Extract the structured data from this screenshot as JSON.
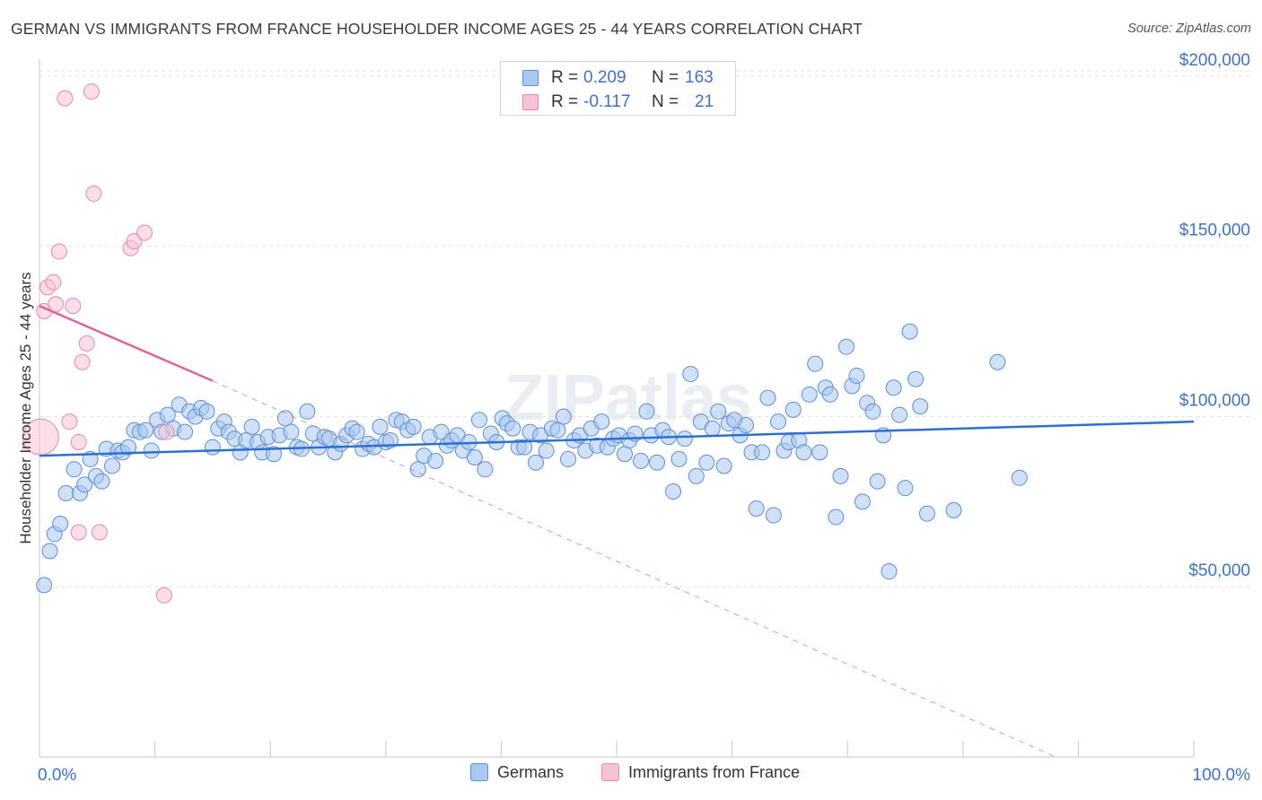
{
  "title": "GERMAN VS IMMIGRANTS FROM FRANCE HOUSEHOLDER INCOME AGES 25 - 44 YEARS CORRELATION CHART",
  "source": "Source: ZipAtlas.com",
  "watermark": "ZIPatlas",
  "colors": {
    "blue_fill": "#aac8f0",
    "blue_stroke": "#5b8fd6",
    "blue_line": "#2f6fcf",
    "pink_fill": "#f7c3d3",
    "pink_stroke": "#e68aa8",
    "pink_line": "#e2648e",
    "axis_text": "#3d72cc",
    "grid": "#e3e3e3"
  },
  "legend_stats": [
    {
      "r_label": "R = ",
      "r_value": "0.209",
      "n_label": "N = ",
      "n_value": "163"
    },
    {
      "r_label": "R = ",
      "r_value": "-0.117",
      "n_label": "N = ",
      "n_value": "21"
    }
  ],
  "chart_data": {
    "type": "scatter",
    "title": "GERMAN VS IMMIGRANTS FROM FRANCE HOUSEHOLDER INCOME AGES 25 - 44 YEARS CORRELATION CHART",
    "xlabel": "",
    "ylabel": "Householder Income Ages 25 - 44 years",
    "xlim": [
      0,
      100
    ],
    "ylim": [
      0,
      205000
    ],
    "x_tick_labels": [
      "0.0%",
      "100.0%"
    ],
    "y_ticks": [
      50000,
      100000,
      150000,
      200000
    ],
    "y_tick_labels": [
      "$50,000",
      "$100,000",
      "$150,000",
      "$200,000"
    ],
    "legend": "bottom-center",
    "series": [
      {
        "name": "Germans",
        "r": 0.209,
        "n": 163,
        "trend": {
          "x": [
            0,
            100
          ],
          "y": [
            88500,
            98500
          ]
        },
        "points": [
          [
            0.4,
            50500
          ],
          [
            0.9,
            60500
          ],
          [
            1.3,
            65500
          ],
          [
            1.8,
            68500
          ],
          [
            2.3,
            77500
          ],
          [
            3.0,
            84500
          ],
          [
            3.5,
            77500
          ],
          [
            3.9,
            80000
          ],
          [
            4.4,
            87500
          ],
          [
            4.9,
            82500
          ],
          [
            5.4,
            81000
          ],
          [
            5.8,
            90500
          ],
          [
            6.3,
            85500
          ],
          [
            6.8,
            90000
          ],
          [
            7.2,
            89500
          ],
          [
            7.7,
            91000
          ],
          [
            8.2,
            96000
          ],
          [
            8.7,
            95500
          ],
          [
            9.2,
            96000
          ],
          [
            9.7,
            90000
          ],
          [
            10.2,
            99000
          ],
          [
            10.6,
            95500
          ],
          [
            11.1,
            100500
          ],
          [
            11.6,
            96500
          ],
          [
            12.1,
            103500
          ],
          [
            12.6,
            95500
          ],
          [
            13.0,
            101500
          ],
          [
            13.5,
            100000
          ],
          [
            14.0,
            102500
          ],
          [
            14.5,
            101500
          ],
          [
            15.0,
            91000
          ],
          [
            15.5,
            96500
          ],
          [
            16.0,
            98500
          ],
          [
            16.4,
            95500
          ],
          [
            16.9,
            93500
          ],
          [
            17.4,
            89500
          ],
          [
            17.9,
            93000
          ],
          [
            18.4,
            97000
          ],
          [
            18.9,
            92500
          ],
          [
            19.3,
            89500
          ],
          [
            19.8,
            94000
          ],
          [
            20.3,
            89000
          ],
          [
            20.8,
            94500
          ],
          [
            21.3,
            99500
          ],
          [
            21.8,
            95500
          ],
          [
            22.3,
            91000
          ],
          [
            22.7,
            90500
          ],
          [
            23.2,
            101500
          ],
          [
            23.7,
            95000
          ],
          [
            24.2,
            91000
          ],
          [
            24.7,
            94000
          ],
          [
            25.1,
            93500
          ],
          [
            25.6,
            89500
          ],
          [
            26.1,
            92000
          ],
          [
            26.6,
            94500
          ],
          [
            27.1,
            96500
          ],
          [
            27.5,
            95500
          ],
          [
            28.0,
            90500
          ],
          [
            28.5,
            92000
          ],
          [
            29.0,
            91000
          ],
          [
            29.5,
            97000
          ],
          [
            30.0,
            92500
          ],
          [
            30.4,
            93000
          ],
          [
            30.9,
            99000
          ],
          [
            31.4,
            98500
          ],
          [
            31.9,
            96000
          ],
          [
            32.4,
            97000
          ],
          [
            32.8,
            84500
          ],
          [
            33.3,
            88500
          ],
          [
            33.8,
            94000
          ],
          [
            34.3,
            87000
          ],
          [
            34.8,
            95500
          ],
          [
            35.3,
            91500
          ],
          [
            35.7,
            93000
          ],
          [
            36.2,
            94500
          ],
          [
            36.7,
            90000
          ],
          [
            37.2,
            92500
          ],
          [
            37.7,
            88000
          ],
          [
            38.1,
            99000
          ],
          [
            38.6,
            84500
          ],
          [
            39.1,
            95000
          ],
          [
            39.6,
            92500
          ],
          [
            40.1,
            99500
          ],
          [
            40.5,
            98000
          ],
          [
            41.0,
            96500
          ],
          [
            41.5,
            91000
          ],
          [
            42.0,
            91000
          ],
          [
            42.5,
            95500
          ],
          [
            43.0,
            86500
          ],
          [
            43.4,
            94500
          ],
          [
            43.9,
            90000
          ],
          [
            44.4,
            96500
          ],
          [
            44.9,
            96000
          ],
          [
            45.4,
            100000
          ],
          [
            45.8,
            87500
          ],
          [
            46.3,
            93000
          ],
          [
            46.8,
            94500
          ],
          [
            47.3,
            90000
          ],
          [
            47.8,
            96500
          ],
          [
            48.3,
            91500
          ],
          [
            48.7,
            98500
          ],
          [
            49.2,
            91000
          ],
          [
            49.7,
            93500
          ],
          [
            50.2,
            94500
          ],
          [
            50.7,
            89000
          ],
          [
            51.1,
            93000
          ],
          [
            51.6,
            95000
          ],
          [
            52.1,
            87000
          ],
          [
            52.6,
            101500
          ],
          [
            53.0,
            94500
          ],
          [
            53.5,
            86500
          ],
          [
            54.0,
            96000
          ],
          [
            54.5,
            94000
          ],
          [
            54.9,
            78000
          ],
          [
            55.4,
            87500
          ],
          [
            55.9,
            93500
          ],
          [
            56.4,
            112500
          ],
          [
            56.9,
            82500
          ],
          [
            57.3,
            98500
          ],
          [
            57.8,
            86500
          ],
          [
            58.3,
            96500
          ],
          [
            58.8,
            101500
          ],
          [
            59.3,
            85500
          ],
          [
            59.7,
            98000
          ],
          [
            60.2,
            99000
          ],
          [
            60.7,
            94500
          ],
          [
            61.2,
            97500
          ],
          [
            61.7,
            89500
          ],
          [
            62.1,
            73000
          ],
          [
            62.6,
            89500
          ],
          [
            63.1,
            105500
          ],
          [
            63.6,
            71000
          ],
          [
            64.0,
            98500
          ],
          [
            64.5,
            90000
          ],
          [
            64.9,
            92500
          ],
          [
            65.3,
            102000
          ],
          [
            65.8,
            93000
          ],
          [
            66.2,
            89500
          ],
          [
            66.7,
            106500
          ],
          [
            67.2,
            115500
          ],
          [
            67.6,
            89500
          ],
          [
            68.1,
            108500
          ],
          [
            68.5,
            106500
          ],
          [
            69.0,
            70500
          ],
          [
            69.4,
            82500
          ],
          [
            69.9,
            120500
          ],
          [
            70.4,
            109000
          ],
          [
            70.8,
            112000
          ],
          [
            71.3,
            75000
          ],
          [
            71.7,
            104000
          ],
          [
            72.2,
            101500
          ],
          [
            72.6,
            81000
          ],
          [
            73.1,
            94500
          ],
          [
            73.6,
            54500
          ],
          [
            74.0,
            108500
          ],
          [
            74.5,
            100500
          ],
          [
            75.0,
            79000
          ],
          [
            75.4,
            125000
          ],
          [
            75.9,
            111000
          ],
          [
            76.3,
            103000
          ],
          [
            76.9,
            71500
          ],
          [
            79.2,
            72500
          ],
          [
            83.0,
            116000
          ],
          [
            84.9,
            82000
          ]
        ]
      },
      {
        "name": "Immigrants from France",
        "r": -0.117,
        "n": 21,
        "trend": {
          "x": [
            0,
            15
          ],
          "y": [
            132500,
            110500
          ]
        },
        "trend_dashed": {
          "x": [
            15,
            88
          ],
          "y": [
            110500,
            0
          ]
        },
        "points": [
          [
            0.1,
            94000
          ],
          [
            0.4,
            131000
          ],
          [
            0.7,
            138000
          ],
          [
            1.2,
            139500
          ],
          [
            1.4,
            133000
          ],
          [
            1.7,
            148500
          ],
          [
            2.2,
            193500
          ],
          [
            2.6,
            98500
          ],
          [
            2.9,
            132500
          ],
          [
            3.4,
            92500
          ],
          [
            3.4,
            66000
          ],
          [
            3.7,
            116000
          ],
          [
            4.1,
            121500
          ],
          [
            4.5,
            195500
          ],
          [
            4.7,
            165500
          ],
          [
            5.2,
            66000
          ],
          [
            7.9,
            149500
          ],
          [
            8.2,
            151500
          ],
          [
            9.1,
            154000
          ],
          [
            10.8,
            47500
          ],
          [
            11.0,
            95500
          ]
        ]
      }
    ]
  }
}
